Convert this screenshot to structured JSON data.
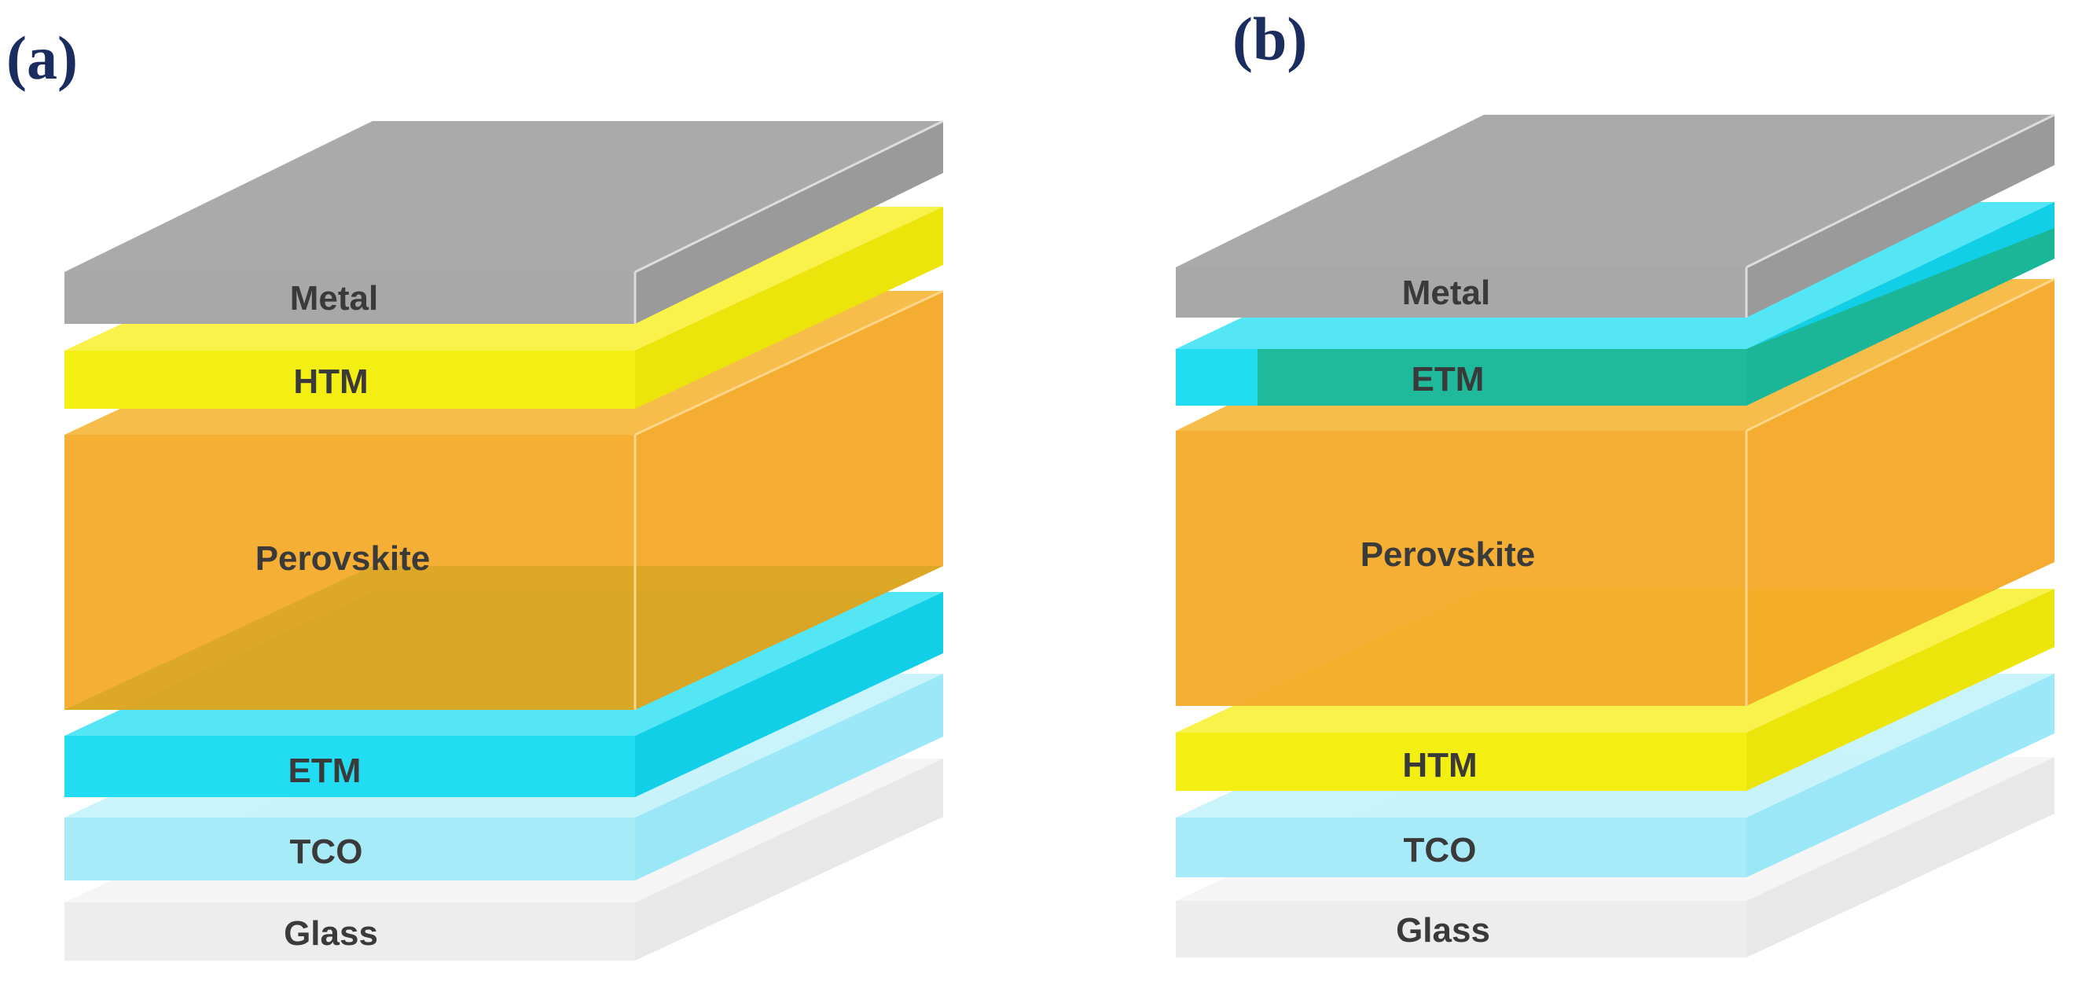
{
  "panels": [
    {
      "label": "(a)",
      "layers": [
        {
          "label": "Metal",
          "color": "#a8a8a8"
        },
        {
          "label": "HTM",
          "color": "#f4ef12"
        },
        {
          "label": "Perovskite",
          "color": "#f4ac2c"
        },
        {
          "label": "ETM",
          "color": "#22dcf2"
        },
        {
          "label": "TCO",
          "color": "#a3eaf8"
        },
        {
          "label": "Glass",
          "color": "#ececec"
        }
      ]
    },
    {
      "label": "(b)",
      "layers": [
        {
          "label": "Metal",
          "color": "#a8a8a8"
        },
        {
          "label": "ETM",
          "color": "#22dcf2"
        },
        {
          "label": "Perovskite",
          "color": "#f4ac2c"
        },
        {
          "label": "HTM",
          "color": "#f4ef12"
        },
        {
          "label": "TCO",
          "color": "#a3eaf8"
        },
        {
          "label": "Glass",
          "color": "#ececec"
        }
      ]
    }
  ]
}
